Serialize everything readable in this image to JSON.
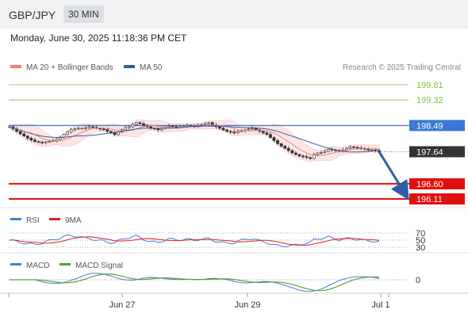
{
  "header": {
    "pair": "GBP/JPY",
    "timeframe": "30 MIN"
  },
  "date_line": "Monday, June 30, 2025 11:18:36 PM CET",
  "credit": "Research © 2025 Trading Central",
  "colors": {
    "ma20": "#f08080",
    "ma50": "#3a5a99",
    "resistance": "#7fbf3f",
    "pivot": "#3c78d8",
    "support": "#e01010",
    "price": "#333333",
    "rsi": "#4a7bd8",
    "rsi9ma": "#e02020",
    "macd": "#4a7bd8",
    "signal": "#5aa02c",
    "arrow": "#2e5fa8"
  },
  "chart_data": [
    {
      "type": "candlestick",
      "title": "",
      "legend": [
        "MA 20 + Bollinger Bands",
        "MA 50"
      ],
      "ylim": [
        195.8,
        200.2
      ],
      "x_ticks": [
        "Jun 27",
        "Jun 29",
        "Jul 1"
      ],
      "closes": [
        198.45,
        198.38,
        198.3,
        198.22,
        198.15,
        198.08,
        198.02,
        197.97,
        197.95,
        197.93,
        197.96,
        197.98,
        198.0,
        198.05,
        198.1,
        198.2,
        198.28,
        198.35,
        198.38,
        198.4,
        198.4,
        198.42,
        198.45,
        198.43,
        198.4,
        198.38,
        198.36,
        198.3,
        198.25,
        198.2,
        198.28,
        198.35,
        198.42,
        198.45,
        198.52,
        198.58,
        198.55,
        198.5,
        198.45,
        198.4,
        198.38,
        198.35,
        198.4,
        198.45,
        198.48,
        198.46,
        198.44,
        198.45,
        198.47,
        198.5,
        198.48,
        198.45,
        198.5,
        198.52,
        198.55,
        198.58,
        198.5,
        198.45,
        198.4,
        198.35,
        198.3,
        198.28,
        198.25,
        198.3,
        198.32,
        198.35,
        198.38,
        198.4,
        198.35,
        198.3,
        198.25,
        198.2,
        198.1,
        198.0,
        197.9,
        197.82,
        197.75,
        197.68,
        197.6,
        197.55,
        197.5,
        197.48,
        197.45,
        197.42,
        197.55,
        197.6,
        197.62,
        197.65,
        197.72,
        197.7,
        197.68,
        197.65,
        197.7,
        197.75,
        197.8,
        197.78,
        197.76,
        197.75,
        197.72,
        197.7,
        197.7,
        197.68,
        197.64
      ],
      "levels": [
        {
          "label": "199.81",
          "kind": "resistance",
          "value": 199.81
        },
        {
          "label": "199.32",
          "kind": "resistance",
          "value": 199.32
        },
        {
          "label": "198.49",
          "kind": "pivot",
          "value": 198.49
        },
        {
          "label": "197.64",
          "kind": "price",
          "value": 197.64
        },
        {
          "label": "196.60",
          "kind": "support",
          "value": 196.6
        },
        {
          "label": "196.11",
          "kind": "support",
          "value": 196.11
        }
      ],
      "forecast_target": 196.11
    },
    {
      "type": "line",
      "legend": [
        "RSI",
        "9MA"
      ],
      "y_ticks": [
        "70",
        "50",
        "30"
      ],
      "ylim": [
        20,
        80
      ]
    },
    {
      "type": "line",
      "legend": [
        "MACD",
        "MACD Signal"
      ],
      "y_ticks": [
        "0"
      ]
    }
  ]
}
